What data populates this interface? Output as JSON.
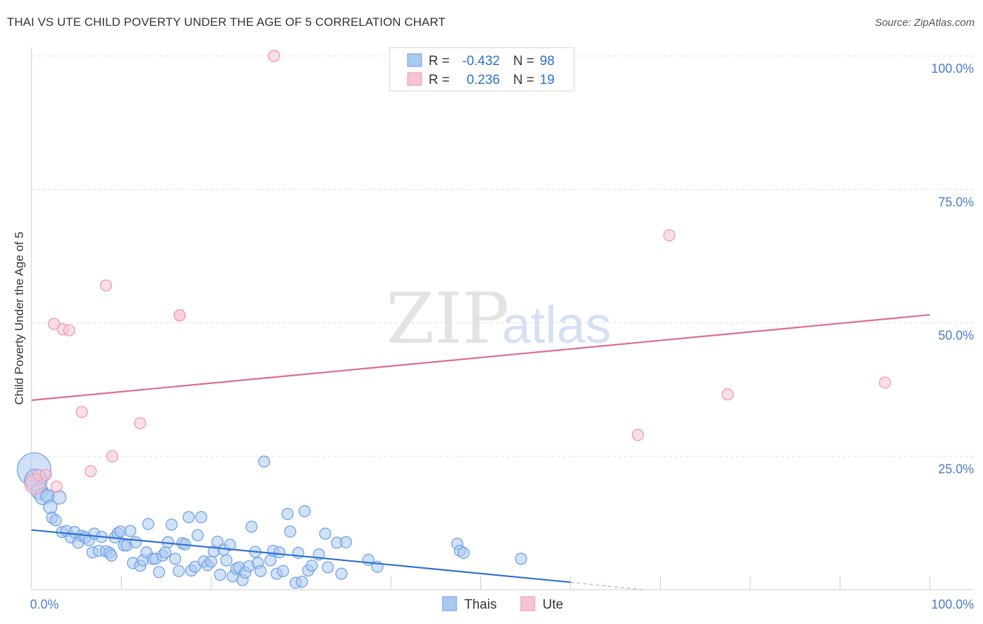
{
  "title": "THAI VS UTE CHILD POVERTY UNDER THE AGE OF 5 CORRELATION CHART",
  "source": "Source: ZipAtlas.com",
  "watermark": {
    "zip": "ZIP",
    "atlas": "atlas"
  },
  "colors": {
    "thais_fill": "#a9c8f2",
    "thais_stroke": "#6a9de0",
    "thais_line": "#2f6fd1",
    "ute_fill": "#f6c4d3",
    "ute_stroke": "#ee93b0",
    "ute_line": "#e06a93",
    "grid": "#dddddd",
    "tick": "#4a7cc9"
  },
  "legend": {
    "rows": [
      {
        "r_label": "R =",
        "r_value": "-0.432",
        "n_label": "N =",
        "n_value": "98"
      },
      {
        "r_label": "R =",
        "r_value": "0.236",
        "n_label": "N =",
        "n_value": "19"
      }
    ]
  },
  "chart_data": {
    "type": "scatter",
    "xlabel": "",
    "ylabel": "Child Poverty Under the Age of 5",
    "xlim": [
      0,
      100
    ],
    "ylim": [
      0,
      100
    ],
    "x_tick_labels": [
      "0.0%",
      "100.0%"
    ],
    "y_tick_labels": [
      "100.0%",
      "75.0%",
      "50.0%",
      "25.0%"
    ],
    "y_tick_values": [
      100,
      75,
      50,
      25
    ],
    "bottom_legend": [
      "Thais",
      "Ute"
    ],
    "series": [
      {
        "name": "Thais",
        "r": -0.432,
        "n": 98,
        "trend": {
          "x0": 0,
          "y0": 11.2,
          "x1": 60,
          "y1": 1.4,
          "dash_to_x": 68,
          "dash_to_y": 0.0
        },
        "points": [
          {
            "x": 0.3,
            "y": 22.5,
            "s": 3
          },
          {
            "x": 0.5,
            "y": 20.5,
            "s": 2
          },
          {
            "x": 0.9,
            "y": 18.5,
            "s": 1.5
          },
          {
            "x": 1.3,
            "y": 17.5,
            "s": 1.5
          },
          {
            "x": 1.8,
            "y": 17.5,
            "s": 1.2
          },
          {
            "x": 2.1,
            "y": 15.5,
            "s": 1.2
          },
          {
            "x": 3.1,
            "y": 17.3,
            "s": 1.2
          },
          {
            "x": 2.3,
            "y": 13.5,
            "s": 1
          },
          {
            "x": 2.7,
            "y": 13.0,
            "s": 1
          },
          {
            "x": 3.4,
            "y": 10.8,
            "s": 1
          },
          {
            "x": 3.9,
            "y": 11.0,
            "s": 1
          },
          {
            "x": 4.4,
            "y": 9.8,
            "s": 1
          },
          {
            "x": 4.8,
            "y": 10.8,
            "s": 1
          },
          {
            "x": 5.2,
            "y": 8.8,
            "s": 1
          },
          {
            "x": 5.6,
            "y": 10.1,
            "s": 1
          },
          {
            "x": 6.0,
            "y": 9.8,
            "s": 1
          },
          {
            "x": 6.4,
            "y": 9.3,
            "s": 1
          },
          {
            "x": 6.8,
            "y": 7.0,
            "s": 1
          },
          {
            "x": 7.0,
            "y": 10.5,
            "s": 1
          },
          {
            "x": 7.5,
            "y": 7.3,
            "s": 1
          },
          {
            "x": 7.8,
            "y": 9.9,
            "s": 1
          },
          {
            "x": 8.3,
            "y": 7.2,
            "s": 1
          },
          {
            "x": 8.7,
            "y": 6.9,
            "s": 1
          },
          {
            "x": 8.9,
            "y": 6.4,
            "s": 1
          },
          {
            "x": 9.3,
            "y": 9.8,
            "s": 1
          },
          {
            "x": 9.6,
            "y": 10.6,
            "s": 1
          },
          {
            "x": 9.9,
            "y": 10.9,
            "s": 1
          },
          {
            "x": 10.3,
            "y": 8.3,
            "s": 1
          },
          {
            "x": 10.6,
            "y": 8.3,
            "s": 1
          },
          {
            "x": 11.0,
            "y": 11.0,
            "s": 1
          },
          {
            "x": 11.3,
            "y": 5.0,
            "s": 1
          },
          {
            "x": 11.6,
            "y": 8.9,
            "s": 1
          },
          {
            "x": 12.1,
            "y": 4.5,
            "s": 1
          },
          {
            "x": 12.4,
            "y": 5.5,
            "s": 1
          },
          {
            "x": 12.8,
            "y": 7.0,
            "s": 1
          },
          {
            "x": 13.0,
            "y": 12.3,
            "s": 1
          },
          {
            "x": 13.5,
            "y": 5.8,
            "s": 1
          },
          {
            "x": 13.8,
            "y": 5.8,
            "s": 1
          },
          {
            "x": 14.2,
            "y": 3.3,
            "s": 1
          },
          {
            "x": 14.6,
            "y": 6.4,
            "s": 1
          },
          {
            "x": 14.9,
            "y": 7.0,
            "s": 1
          },
          {
            "x": 15.2,
            "y": 8.9,
            "s": 1
          },
          {
            "x": 15.6,
            "y": 12.2,
            "s": 1
          },
          {
            "x": 16.0,
            "y": 5.8,
            "s": 1
          },
          {
            "x": 16.4,
            "y": 3.5,
            "s": 1
          },
          {
            "x": 16.8,
            "y": 8.7,
            "s": 1
          },
          {
            "x": 17.1,
            "y": 8.5,
            "s": 1
          },
          {
            "x": 17.5,
            "y": 13.6,
            "s": 1
          },
          {
            "x": 17.8,
            "y": 3.6,
            "s": 1
          },
          {
            "x": 18.2,
            "y": 4.3,
            "s": 1
          },
          {
            "x": 18.5,
            "y": 10.2,
            "s": 1
          },
          {
            "x": 18.9,
            "y": 13.6,
            "s": 1
          },
          {
            "x": 19.2,
            "y": 5.3,
            "s": 1
          },
          {
            "x": 19.6,
            "y": 4.6,
            "s": 1
          },
          {
            "x": 20.0,
            "y": 5.3,
            "s": 1
          },
          {
            "x": 20.3,
            "y": 7.2,
            "s": 1
          },
          {
            "x": 20.7,
            "y": 9.0,
            "s": 1
          },
          {
            "x": 21.0,
            "y": 2.8,
            "s": 1
          },
          {
            "x": 21.4,
            "y": 7.5,
            "s": 1
          },
          {
            "x": 21.7,
            "y": 5.5,
            "s": 1
          },
          {
            "x": 22.1,
            "y": 8.4,
            "s": 1
          },
          {
            "x": 22.4,
            "y": 2.5,
            "s": 1
          },
          {
            "x": 22.8,
            "y": 3.9,
            "s": 1
          },
          {
            "x": 23.1,
            "y": 4.2,
            "s": 1
          },
          {
            "x": 23.5,
            "y": 1.8,
            "s": 1
          },
          {
            "x": 23.8,
            "y": 3.2,
            "s": 1
          },
          {
            "x": 24.2,
            "y": 4.4,
            "s": 1
          },
          {
            "x": 24.5,
            "y": 11.8,
            "s": 1
          },
          {
            "x": 24.9,
            "y": 7.1,
            "s": 1
          },
          {
            "x": 25.2,
            "y": 5.0,
            "s": 1
          },
          {
            "x": 25.5,
            "y": 3.5,
            "s": 1
          },
          {
            "x": 25.9,
            "y": 24.0,
            "s": 1
          },
          {
            "x": 26.6,
            "y": 5.5,
            "s": 1
          },
          {
            "x": 26.9,
            "y": 7.3,
            "s": 1
          },
          {
            "x": 27.3,
            "y": 3.0,
            "s": 1
          },
          {
            "x": 27.6,
            "y": 7.0,
            "s": 1
          },
          {
            "x": 28.0,
            "y": 3.5,
            "s": 1
          },
          {
            "x": 28.5,
            "y": 14.2,
            "s": 1
          },
          {
            "x": 28.8,
            "y": 10.9,
            "s": 1
          },
          {
            "x": 29.4,
            "y": 1.3,
            "s": 1
          },
          {
            "x": 29.7,
            "y": 6.9,
            "s": 1
          },
          {
            "x": 30.1,
            "y": 1.5,
            "s": 1
          },
          {
            "x": 30.4,
            "y": 14.7,
            "s": 1
          },
          {
            "x": 30.8,
            "y": 3.6,
            "s": 1
          },
          {
            "x": 31.2,
            "y": 4.5,
            "s": 1
          },
          {
            "x": 32.0,
            "y": 6.6,
            "s": 1
          },
          {
            "x": 32.7,
            "y": 10.5,
            "s": 1
          },
          {
            "x": 33.0,
            "y": 4.2,
            "s": 1
          },
          {
            "x": 34.0,
            "y": 8.8,
            "s": 1
          },
          {
            "x": 34.5,
            "y": 3.0,
            "s": 1
          },
          {
            "x": 35.0,
            "y": 8.9,
            "s": 1
          },
          {
            "x": 37.5,
            "y": 5.6,
            "s": 1
          },
          {
            "x": 38.5,
            "y": 4.3,
            "s": 1
          },
          {
            "x": 47.4,
            "y": 8.6,
            "s": 1
          },
          {
            "x": 47.7,
            "y": 7.3,
            "s": 1
          },
          {
            "x": 48.1,
            "y": 6.9,
            "s": 1
          },
          {
            "x": 54.5,
            "y": 5.8,
            "s": 1
          }
        ]
      },
      {
        "name": "Ute",
        "r": 0.236,
        "n": 19,
        "trend": {
          "x0": 0,
          "y0": 35.5,
          "x1": 100,
          "y1": 51.5
        },
        "points": [
          {
            "x": 0.4,
            "y": 19.8,
            "s": 1.8
          },
          {
            "x": 0.8,
            "y": 21.5,
            "s": 1
          },
          {
            "x": 1.6,
            "y": 21.5,
            "s": 1
          },
          {
            "x": 2.5,
            "y": 49.8,
            "s": 1
          },
          {
            "x": 2.8,
            "y": 19.3,
            "s": 1
          },
          {
            "x": 3.5,
            "y": 48.8,
            "s": 1
          },
          {
            "x": 4.2,
            "y": 48.6,
            "s": 1
          },
          {
            "x": 5.6,
            "y": 33.3,
            "s": 1
          },
          {
            "x": 6.6,
            "y": 22.2,
            "s": 1
          },
          {
            "x": 8.3,
            "y": 57.0,
            "s": 1
          },
          {
            "x": 9.0,
            "y": 25.0,
            "s": 1
          },
          {
            "x": 12.1,
            "y": 31.2,
            "s": 1
          },
          {
            "x": 16.5,
            "y": 51.4,
            "s": 1
          },
          {
            "x": 27.0,
            "y": 100.0,
            "s": 1
          },
          {
            "x": 67.5,
            "y": 29.0,
            "s": 1
          },
          {
            "x": 71.0,
            "y": 66.4,
            "s": 1
          },
          {
            "x": 77.5,
            "y": 36.6,
            "s": 1
          },
          {
            "x": 95.0,
            "y": 38.8,
            "s": 1
          },
          {
            "x": 16.5,
            "y": 51.4,
            "s": 1
          }
        ]
      }
    ]
  }
}
